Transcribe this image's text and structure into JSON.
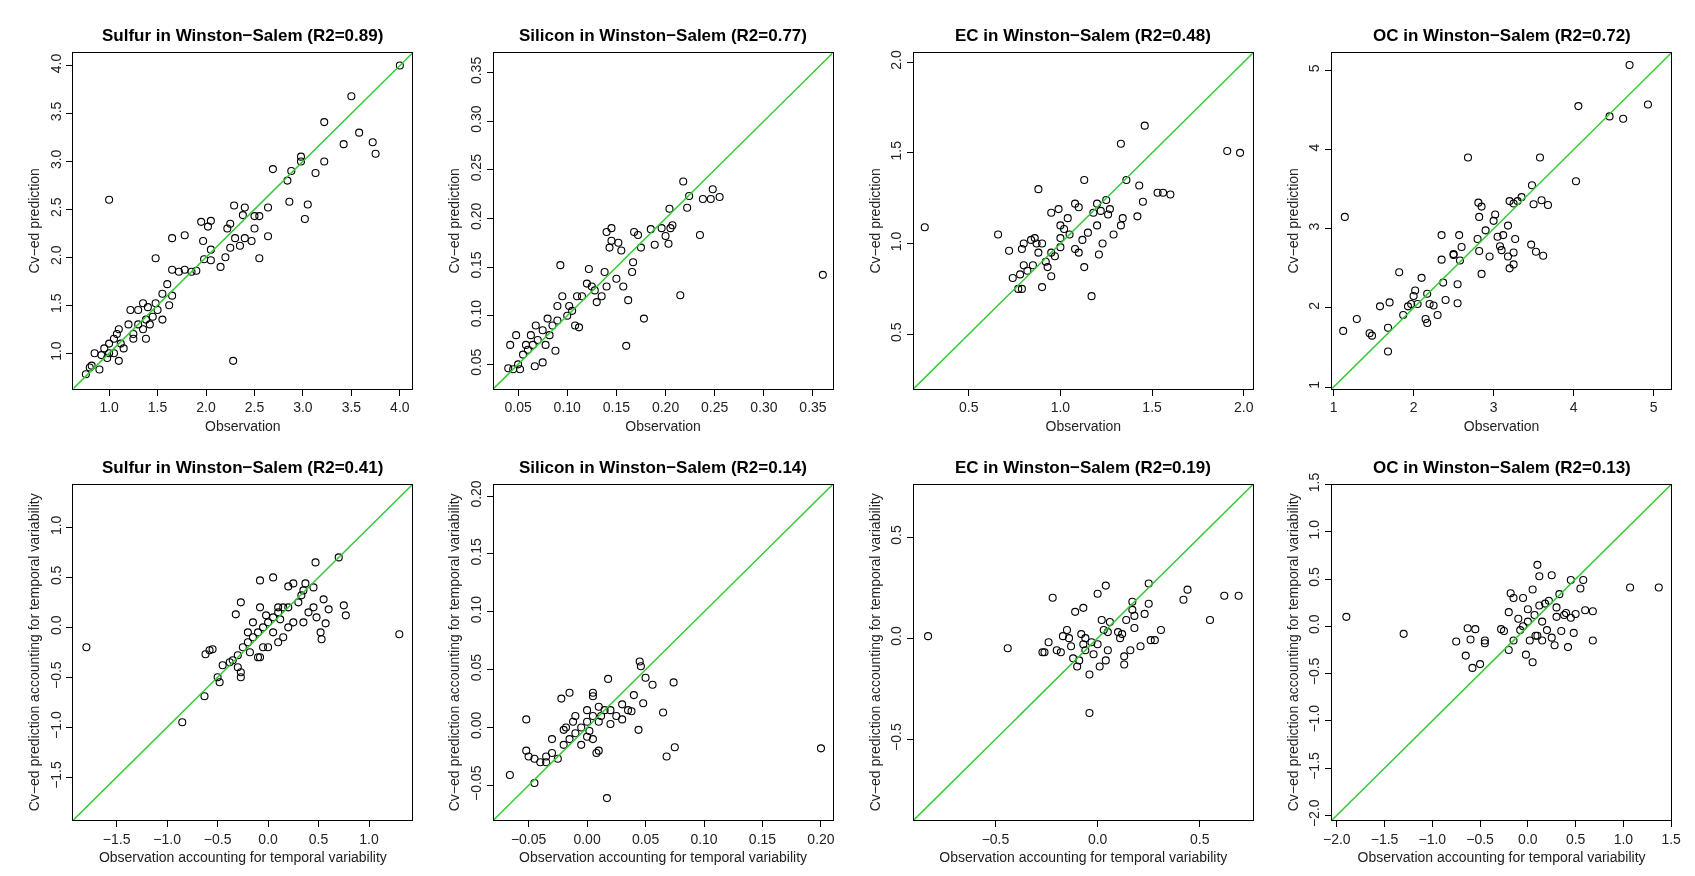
{
  "chart_data": [
    {
      "type": "scatter",
      "title": "Sulfur in Winston−Salem (R2=0.89)",
      "xlabel": "Observation",
      "ylabel": "Cv−ed prediction",
      "marker": "circle",
      "grid": false,
      "xlim": [
        0.63,
        4.13
      ],
      "ylim": [
        0.63,
        4.13
      ],
      "xticks": [
        {
          "value": 1,
          "label": "1.0"
        },
        {
          "value": 1.5,
          "label": "1.5"
        },
        {
          "value": 2,
          "label": "2.0"
        },
        {
          "value": 2.5,
          "label": "2.5"
        },
        {
          "value": 3,
          "label": "3.0"
        },
        {
          "value": 3.5,
          "label": "3.5"
        },
        {
          "value": 4,
          "label": "4.0"
        }
      ],
      "yticks": [
        {
          "value": 1,
          "label": "1.0"
        },
        {
          "value": 1.5,
          "label": "1.5"
        },
        {
          "value": 2,
          "label": "2.0"
        },
        {
          "value": 2.5,
          "label": "2.5"
        },
        {
          "value": 3,
          "label": "3.0"
        },
        {
          "value": 3.5,
          "label": "3.5"
        },
        {
          "value": 4,
          "label": "4.0"
        }
      ],
      "series": [
        {
          "color": "#000000",
          "x": [
            1.0,
            2.28,
            4.0,
            3.5,
            3.58,
            3.72,
            3.75,
            3.42,
            3.22,
            3.22,
            3.13,
            3.05,
            3.02,
            2.98,
            2.98,
            2.88,
            2.86,
            2.84,
            2.69,
            2.64,
            2.64,
            2.55,
            2.5,
            2.5,
            2.47,
            2.55,
            2.4,
            2.38,
            2.29,
            2.25,
            2.22,
            2.25,
            2.2,
            2.3,
            2.35,
            2.4,
            2.15,
            2.05,
            2.02,
            1.95,
            1.97,
            2.05,
            2.05,
            1.98,
            1.9,
            1.85,
            1.78,
            1.65,
            1.48,
            1.78,
            1.72,
            1.65,
            1.65,
            1.62,
            1.6,
            1.55,
            1.5,
            1.48,
            1.45,
            1.4,
            1.35,
            1.3,
            1.38,
            1.35,
            1.3,
            1.25,
            1.22,
            1.2,
            1.15,
            1.1,
            1.08,
            1.05,
            1.1,
            1.05,
            1.0,
            0.98,
            0.95,
            0.92,
            0.9,
            0.85,
            0.82,
            0.8,
            0.76,
            1.25,
            1.38,
            1.55,
            1.42,
            1.0,
            1.12
          ],
          "values": [
            2.6,
            0.92,
            4.0,
            3.68,
            3.3,
            3.2,
            3.08,
            3.18,
            3.41,
            3.0,
            2.88,
            2.55,
            2.4,
            3.05,
            3.0,
            2.9,
            2.58,
            2.8,
            2.92,
            2.52,
            2.22,
            2.43,
            2.43,
            2.3,
            2.17,
            1.99,
            2.52,
            2.44,
            2.54,
            2.35,
            2.3,
            2.1,
            2.0,
            2.2,
            2.12,
            2.2,
            1.9,
            2.38,
            2.32,
            2.37,
            2.17,
            2.08,
            1.97,
            1.98,
            1.86,
            1.85,
            2.23,
            2.2,
            1.99,
            1.87,
            1.85,
            1.87,
            1.6,
            1.5,
            1.72,
            1.62,
            1.45,
            1.52,
            1.38,
            1.48,
            1.52,
            1.45,
            1.35,
            1.25,
            1.3,
            1.2,
            1.45,
            1.3,
            1.05,
            1.25,
            1.2,
            1.15,
            0.92,
            1.0,
            1.1,
            0.95,
            1.05,
            0.98,
            0.83,
            1.0,
            0.87,
            0.85,
            0.78,
            1.15,
            1.15,
            1.35,
            1.3,
            1.0,
            1.1
          ]
        },
        {
          "type": "line",
          "marker": "none",
          "color": "#33cc33",
          "x": [
            0.63,
            4.13
          ],
          "values": [
            0.63,
            4.13
          ]
        }
      ]
    },
    {
      "type": "scatter",
      "title": "Silicon in Winston−Salem (R2=0.77)",
      "xlabel": "Observation",
      "ylabel": "Cv−ed prediction",
      "marker": "circle",
      "grid": false,
      "xlim": [
        0.025,
        0.37
      ],
      "ylim": [
        0.025,
        0.37
      ],
      "xticks": [
        {
          "value": 0.05,
          "label": "0.05"
        },
        {
          "value": 0.1,
          "label": "0.10"
        },
        {
          "value": 0.15,
          "label": "0.15"
        },
        {
          "value": 0.2,
          "label": "0.20"
        },
        {
          "value": 0.25,
          "label": "0.25"
        },
        {
          "value": 0.3,
          "label": "0.30"
        },
        {
          "value": 0.35,
          "label": "0.35"
        }
      ],
      "yticks": [
        {
          "value": 0.05,
          "label": "0.05"
        },
        {
          "value": 0.1,
          "label": "0.10"
        },
        {
          "value": 0.15,
          "label": "0.15"
        },
        {
          "value": 0.2,
          "label": "0.20"
        },
        {
          "value": 0.25,
          "label": "0.25"
        },
        {
          "value": 0.3,
          "label": "0.30"
        },
        {
          "value": 0.35,
          "label": "0.35"
        }
      ],
      "series": [
        {
          "color": "#000000",
          "x": [
            0.36,
            0.16,
            0.178,
            0.215,
            0.162,
            0.093,
            0.218,
            0.224,
            0.248,
            0.255,
            0.238,
            0.246,
            0.235,
            0.222,
            0.204,
            0.207,
            0.205,
            0.2,
            0.203,
            0.196,
            0.185,
            0.189,
            0.175,
            0.172,
            0.168,
            0.167,
            0.166,
            0.157,
            0.155,
            0.152,
            0.145,
            0.14,
            0.143,
            0.145,
            0.138,
            0.15,
            0.14,
            0.135,
            0.128,
            0.122,
            0.12,
            0.115,
            0.11,
            0.108,
            0.102,
            0.1,
            0.095,
            0.09,
            0.085,
            0.082,
            0.08,
            0.075,
            0.07,
            0.068,
            0.065,
            0.063,
            0.06,
            0.058,
            0.055,
            0.05,
            0.048,
            0.045,
            0.042,
            0.04,
            0.052,
            0.067,
            0.075,
            0.088,
            0.112,
            0.13,
            0.09,
            0.078,
            0.105,
            0.125
          ],
          "values": [
            0.142,
            0.069,
            0.097,
            0.121,
            0.116,
            0.152,
            0.238,
            0.223,
            0.23,
            0.222,
            0.22,
            0.22,
            0.183,
            0.211,
            0.21,
            0.193,
            0.19,
            0.182,
            0.174,
            0.19,
            0.189,
            0.173,
            0.17,
            0.183,
            0.186,
            0.155,
            0.145,
            0.13,
            0.167,
            0.175,
            0.19,
            0.186,
            0.17,
            0.177,
            0.145,
            0.138,
            0.13,
            0.12,
            0.126,
            0.148,
            0.133,
            0.12,
            0.12,
            0.09,
            0.11,
            0.1,
            0.12,
            0.095,
            0.09,
            0.08,
            0.097,
            0.085,
            0.075,
            0.09,
            0.07,
            0.08,
            0.065,
            0.07,
            0.06,
            0.05,
            0.08,
            0.045,
            0.07,
            0.046,
            0.045,
            0.048,
            0.052,
            0.064,
            0.088,
            0.114,
            0.11,
            0.07,
            0.105,
            0.13
          ]
        },
        {
          "type": "line",
          "marker": "none",
          "color": "#33cc33",
          "x": [
            0.025,
            0.37
          ],
          "values": [
            0.025,
            0.37
          ]
        }
      ]
    },
    {
      "type": "scatter",
      "title": "EC in Winston−Salem (R2=0.48)",
      "xlabel": "Observation",
      "ylabel": "Cv−ed prediction",
      "marker": "circle",
      "grid": false,
      "xlim": [
        0.2,
        2.05
      ],
      "ylim": [
        0.2,
        2.05
      ],
      "xticks": [
        {
          "value": 0.5,
          "label": "0.5"
        },
        {
          "value": 1,
          "label": "1.0"
        },
        {
          "value": 1.5,
          "label": "1.5"
        },
        {
          "value": 2,
          "label": "2.0"
        }
      ],
      "yticks": [
        {
          "value": 0.5,
          "label": "0.5"
        },
        {
          "value": 1,
          "label": "1.0"
        },
        {
          "value": 1.5,
          "label": "1.5"
        },
        {
          "value": 2,
          "label": "2.0"
        }
      ],
      "series": [
        {
          "color": "#000000",
          "x": [
            0.26,
            0.66,
            0.72,
            0.74,
            0.77,
            0.79,
            0.78,
            0.8,
            0.79,
            0.8,
            0.82,
            0.84,
            0.85,
            0.86,
            0.88,
            0.87,
            0.88,
            0.9,
            0.9,
            0.92,
            0.93,
            0.95,
            0.95,
            0.97,
            0.99,
            1.0,
            1.0,
            1.02,
            1.04,
            1.05,
            1.08,
            1.1,
            1.08,
            1.1,
            1.12,
            1.13,
            1.13,
            1.15,
            1.17,
            1.18,
            1.2,
            1.21,
            1.22,
            1.23,
            1.25,
            1.26,
            1.27,
            1.29,
            1.33,
            1.33,
            1.34,
            1.36,
            1.42,
            1.43,
            1.45,
            1.46,
            1.53,
            1.56,
            1.6,
            1.91,
            1.98,
            1.0,
            0.95,
            1.2
          ],
          "values": [
            1.09,
            1.05,
            0.96,
            0.81,
            0.75,
            0.75,
            0.83,
            0.88,
            0.97,
            1.0,
            0.85,
            1.02,
            0.88,
            1.03,
            1.3,
            1.0,
            0.95,
            0.76,
            1.0,
            0.9,
            0.87,
            1.17,
            0.82,
            0.93,
            1.19,
            1.1,
            1.03,
            1.08,
            1.14,
            1.05,
            1.22,
            1.2,
            0.97,
            0.95,
            1.02,
            1.35,
            0.87,
            1.06,
            0.71,
            1.17,
            1.22,
            0.94,
            1.18,
            1.0,
            1.24,
            1.16,
            1.19,
            1.05,
            1.55,
            1.1,
            1.14,
            1.35,
            1.15,
            1.32,
            1.23,
            1.65,
            1.28,
            1.28,
            1.27,
            1.51,
            1.5,
            0.98,
            0.95,
            1.1
          ]
        },
        {
          "type": "line",
          "marker": "none",
          "color": "#33cc33",
          "x": [
            0.2,
            2.05
          ],
          "values": [
            0.2,
            2.05
          ]
        }
      ]
    },
    {
      "type": "scatter",
      "title": "OC in Winston−Salem (R2=0.72)",
      "xlabel": "Observation",
      "ylabel": "Cv−ed prediction",
      "marker": "circle",
      "grid": false,
      "xlim": [
        0.98,
        5.22
      ],
      "ylim": [
        0.98,
        5.22
      ],
      "xticks": [
        1,
        2,
        3,
        4,
        5
      ],
      "yticks": [
        1,
        2,
        3,
        4,
        5
      ],
      "series": [
        {
          "color": "#000000",
          "x": [
            1.14,
            1.12,
            1.29,
            1.45,
            1.48,
            1.58,
            1.68,
            1.68,
            1.7,
            1.82,
            1.87,
            1.93,
            1.97,
            2.0,
            2.02,
            2.05,
            2.1,
            2.15,
            2.17,
            2.17,
            2.2,
            2.25,
            2.3,
            2.35,
            2.35,
            2.37,
            2.4,
            2.5,
            2.55,
            2.55,
            2.57,
            2.58,
            2.6,
            2.68,
            2.8,
            2.81,
            2.82,
            2.82,
            2.85,
            2.85,
            2.9,
            2.95,
            3.0,
            3.02,
            3.05,
            3.08,
            3.1,
            3.12,
            3.18,
            3.18,
            3.2,
            3.2,
            3.25,
            3.27,
            3.25,
            3.3,
            3.35,
            3.47,
            3.48,
            3.5,
            3.53,
            3.58,
            3.6,
            3.62,
            3.68,
            4.03,
            4.06,
            4.45,
            4.62,
            4.7,
            4.93,
            2.5,
            3.25
          ],
          "values": [
            3.15,
            1.71,
            1.86,
            1.68,
            1.65,
            2.02,
            1.45,
            1.75,
            2.07,
            2.45,
            1.91,
            2.02,
            2.05,
            2.15,
            2.22,
            2.05,
            2.38,
            1.86,
            1.81,
            2.18,
            2.05,
            2.03,
            1.91,
            2.61,
            2.92,
            2.32,
            2.1,
            2.68,
            2.06,
            2.3,
            2.92,
            2.6,
            2.77,
            3.9,
            2.87,
            3.33,
            2.72,
            3.15,
            3.28,
            2.43,
            2.98,
            2.65,
            3.1,
            3.18,
            2.9,
            2.78,
            2.73,
            2.92,
            2.65,
            3.04,
            2.5,
            3.35,
            2.55,
            2.87,
            3.32,
            3.35,
            3.4,
            2.8,
            3.55,
            3.31,
            2.71,
            3.9,
            3.36,
            2.66,
            3.3,
            3.6,
            4.55,
            4.42,
            4.39,
            5.07,
            4.57,
            2.67,
            2.7
          ]
        },
        {
          "type": "line",
          "marker": "none",
          "color": "#33cc33",
          "x": [
            0.98,
            5.22
          ],
          "values": [
            0.98,
            5.22
          ]
        }
      ]
    },
    {
      "type": "scatter",
      "title": "Sulfur in Winston−Salem (R2=0.41)",
      "xlabel": "Observation accounting for temporal variability",
      "ylabel": "Cv−ed prediction accounting for temporal variability",
      "marker": "circle",
      "grid": false,
      "xlim": [
        -1.93,
        1.43
      ],
      "ylim": [
        -1.93,
        1.43
      ],
      "xticks": [
        {
          "value": -1.5,
          "label": "−1.5"
        },
        {
          "value": -1,
          "label": "−1.0"
        },
        {
          "value": -0.5,
          "label": "−0.5"
        },
        {
          "value": 0,
          "label": "0.0"
        },
        {
          "value": 0.5,
          "label": "0.5"
        },
        {
          "value": 1,
          "label": "1.0"
        }
      ],
      "yticks": [
        {
          "value": -1.5,
          "label": "−1.5"
        },
        {
          "value": -1,
          "label": "−1.0"
        },
        {
          "value": -0.5,
          "label": "−0.5"
        },
        {
          "value": 0,
          "label": "0.0"
        },
        {
          "value": 0.5,
          "label": "0.5"
        },
        {
          "value": 1,
          "label": "1.0"
        }
      ],
      "series": [
        {
          "color": "#000000",
          "x": [
            -1.8,
            1.3,
            -0.85,
            -0.63,
            0.7,
            0.47,
            0.05,
            -0.08,
            0.2,
            0.25,
            0.37,
            0.45,
            0.35,
            0.33,
            0.3,
            0.2,
            0.15,
            0.1,
            0.05,
            0.0,
            -0.05,
            -0.1,
            -0.15,
            -0.2,
            -0.25,
            -0.3,
            -0.35,
            -0.45,
            -0.5,
            -0.48,
            -0.27,
            -0.27,
            -0.3,
            -0.38,
            -0.55,
            -0.58,
            -0.62,
            -0.32,
            -0.27,
            -0.15,
            -0.08,
            -0.05,
            -0.1,
            0.0,
            0.1,
            0.15,
            0.2,
            0.25,
            0.35,
            0.4,
            0.45,
            0.48,
            0.52,
            0.53,
            0.55,
            0.57,
            0.6,
            0.75,
            0.77,
            0.1,
            -0.2,
            -0.02,
            0.05,
            -0.18,
            -0.08,
            0.12
          ],
          "values": [
            -0.2,
            -0.07,
            -0.95,
            -0.69,
            0.7,
            0.65,
            0.5,
            0.47,
            0.41,
            0.44,
            0.44,
            0.4,
            0.37,
            0.32,
            0.25,
            0.2,
            0.2,
            0.15,
            0.1,
            0.05,
            0.0,
            -0.05,
            -0.1,
            -0.15,
            -0.2,
            -0.28,
            -0.33,
            -0.38,
            -0.5,
            -0.55,
            -0.5,
            -0.45,
            -0.4,
            -0.35,
            -0.22,
            -0.23,
            -0.27,
            0.13,
            0.25,
            0.05,
            0.2,
            -0.2,
            -0.3,
            -0.2,
            -0.15,
            -0.1,
            0.0,
            0.05,
            0.05,
            0.15,
            0.2,
            0.1,
            -0.05,
            -0.12,
            0.28,
            0.04,
            0.18,
            0.22,
            0.12,
            0.2,
            -0.05,
            0.12,
            -0.05,
            -0.25,
            -0.3,
            0.08
          ]
        },
        {
          "type": "line",
          "marker": "none",
          "color": "#33cc33",
          "x": [
            -1.93,
            1.43
          ],
          "values": [
            -1.93,
            1.43
          ]
        }
      ]
    },
    {
      "type": "scatter",
      "title": "Silicon in Winston−Salem (R2=0.14)",
      "xlabel": "Observation accounting for temporal variability",
      "ylabel": "Cv−ed prediction accounting for temporal variability",
      "marker": "circle",
      "grid": false,
      "xlim": [
        -0.08,
        0.21
      ],
      "ylim": [
        -0.08,
        0.21
      ],
      "xticks": [
        {
          "value": -0.05,
          "label": "−0.05"
        },
        {
          "value": 0,
          "label": "0.00"
        },
        {
          "value": 0.05,
          "label": "0.05"
        },
        {
          "value": 0.1,
          "label": "0.10"
        },
        {
          "value": 0.15,
          "label": "0.15"
        },
        {
          "value": 0.2,
          "label": "0.20"
        }
      ],
      "yticks": [
        {
          "value": -0.05,
          "label": "−0.05"
        },
        {
          "value": 0,
          "label": "0.00"
        },
        {
          "value": 0.05,
          "label": "0.05"
        },
        {
          "value": 0.1,
          "label": "0.10"
        },
        {
          "value": 0.15,
          "label": "0.15"
        },
        {
          "value": 0.2,
          "label": "0.20"
        }
      ],
      "series": [
        {
          "color": "#000000",
          "x": [
            0.2,
            -0.066,
            -0.045,
            0.017,
            -0.052,
            -0.052,
            -0.05,
            -0.045,
            -0.04,
            -0.035,
            -0.035,
            -0.03,
            -0.025,
            -0.022,
            -0.015,
            -0.02,
            -0.015,
            -0.01,
            -0.005,
            0.0,
            0.005,
            0.005,
            0.0,
            -0.01,
            0.005,
            0.005,
            0.01,
            0.01,
            0.008,
            0.015,
            0.018,
            0.02,
            0.025,
            0.03,
            0.03,
            0.035,
            0.038,
            0.04,
            0.044,
            0.045,
            0.046,
            0.048,
            0.05,
            0.056,
            0.065,
            0.068,
            0.074,
            0.075,
            -0.02,
            -0.03,
            0.0,
            -0.005,
            0.012,
            -0.012,
            0.002,
            0.02,
            -0.018,
            0.01
          ],
          "values": [
            -0.018,
            -0.041,
            -0.048,
            -0.061,
            0.007,
            -0.02,
            -0.025,
            -0.027,
            -0.03,
            -0.025,
            -0.03,
            -0.022,
            -0.027,
            0.025,
            0.03,
            -0.015,
            -0.01,
            -0.005,
            0.0,
            0.005,
            0.01,
            -0.01,
            -0.008,
            0.01,
            0.03,
            0.027,
            0.005,
            -0.02,
            -0.022,
            0.015,
            0.042,
            0.003,
            0.01,
            0.02,
            0.007,
            0.015,
            0.014,
            0.028,
            -0.002,
            0.057,
            0.053,
            0.021,
            0.043,
            0.037,
            0.013,
            -0.025,
            0.039,
            -0.017,
            -0.002,
            -0.01,
            0.015,
            -0.015,
            0.01,
            0.005,
            -0.003,
            0.015,
            0.0,
            0.018
          ]
        },
        {
          "type": "line",
          "marker": "none",
          "color": "#33cc33",
          "x": [
            -0.08,
            0.21
          ],
          "values": [
            -0.08,
            0.21
          ]
        }
      ]
    },
    {
      "type": "scatter",
      "title": "EC in Winston−Salem (R2=0.19)",
      "xlabel": "Observation accounting for temporal variability",
      "ylabel": "Cv−ed prediction accounting for temporal variability",
      "marker": "circle",
      "grid": false,
      "xlim": [
        -0.9,
        0.76
      ],
      "ylim": [
        -0.9,
        0.76
      ],
      "xticks": [
        {
          "value": -0.5,
          "label": "−0.5"
        },
        {
          "value": 0,
          "label": "0.0"
        },
        {
          "value": 0.5,
          "label": "0.5"
        }
      ],
      "yticks": [
        {
          "value": -0.5,
          "label": "−0.5"
        },
        {
          "value": 0,
          "label": "0.0"
        },
        {
          "value": 0.5,
          "label": "0.5"
        }
      ],
      "series": [
        {
          "color": "#000000",
          "x": [
            -0.83,
            -0.44,
            -0.27,
            -0.26,
            -0.24,
            -0.22,
            -0.2,
            -0.18,
            -0.17,
            -0.15,
            -0.14,
            -0.13,
            -0.12,
            -0.11,
            -0.1,
            -0.09,
            -0.08,
            -0.07,
            -0.07,
            -0.06,
            -0.04,
            -0.04,
            -0.03,
            -0.02,
            0.0,
            0.01,
            0.02,
            0.03,
            0.04,
            0.04,
            0.05,
            0.05,
            0.06,
            0.1,
            0.11,
            0.12,
            0.13,
            0.13,
            0.14,
            0.16,
            0.17,
            0.17,
            0.18,
            0.18,
            0.21,
            0.23,
            0.25,
            0.25,
            0.26,
            0.28,
            0.31,
            0.42,
            0.44,
            0.55,
            0.62,
            0.69,
            -0.06,
            0.0
          ],
          "values": [
            0.01,
            -0.05,
            -0.07,
            -0.07,
            -0.02,
            0.2,
            -0.06,
            -0.07,
            0.01,
            0.04,
            0.0,
            -0.04,
            -0.1,
            0.13,
            -0.14,
            -0.11,
            0.02,
            -0.03,
            0.15,
            -0.06,
            -0.18,
            -0.37,
            -0.02,
            -0.08,
            0.22,
            -0.14,
            0.09,
            0.04,
            -0.11,
            0.26,
            0.03,
            -0.06,
            0.08,
            0.03,
            0.0,
            0.02,
            -0.09,
            -0.13,
            0.09,
            -0.06,
            0.18,
            0.14,
            0.05,
            0.11,
            -0.04,
            0.12,
            0.27,
            0.17,
            -0.01,
            -0.01,
            0.04,
            0.19,
            0.24,
            0.09,
            0.21,
            0.21,
            0.0,
            -0.03
          ]
        },
        {
          "type": "line",
          "marker": "none",
          "color": "#33cc33",
          "x": [
            -0.9,
            0.76
          ],
          "values": [
            -0.9,
            0.76
          ]
        }
      ]
    },
    {
      "type": "scatter",
      "title": "OC in Winston−Salem (R2=0.13)",
      "xlabel": "Observation accounting for temporal variability",
      "ylabel": "Cv−ed prediction accounting for temporal variability",
      "marker": "circle",
      "grid": false,
      "xlim": [
        -2.05,
        1.5
      ],
      "ylim": [
        -2.05,
        1.5
      ],
      "xticks": [
        {
          "value": -2,
          "label": "−2.0"
        },
        {
          "value": -1.5,
          "label": "−1.5"
        },
        {
          "value": -1,
          "label": "−1.0"
        },
        {
          "value": -0.5,
          "label": "−0.5"
        },
        {
          "value": 0,
          "label": "0.0"
        },
        {
          "value": 0.5,
          "label": "0.5"
        },
        {
          "value": 1,
          "label": "1.0"
        },
        {
          "value": 1.5,
          "label": "1.5"
        }
      ],
      "yticks": [
        {
          "value": -2,
          "label": "−2.0"
        },
        {
          "value": -1.5,
          "label": "−1.5"
        },
        {
          "value": -1,
          "label": "−1.0"
        },
        {
          "value": -0.5,
          "label": "−0.5"
        },
        {
          "value": 0,
          "label": "0.0"
        },
        {
          "value": 0.5,
          "label": "0.5"
        },
        {
          "value": 1,
          "label": "1.0"
        },
        {
          "value": 1.5,
          "label": "1.5"
        }
      ],
      "series": [
        {
          "color": "#000000",
          "x": [
            -1.9,
            -1.3,
            -0.75,
            -0.65,
            -0.63,
            -0.6,
            -0.58,
            -0.55,
            -0.45,
            -0.45,
            -0.5,
            -0.28,
            -0.25,
            -0.2,
            -0.2,
            -0.18,
            -0.15,
            -0.15,
            -0.1,
            -0.08,
            -0.05,
            -0.02,
            0.0,
            0.0,
            0.02,
            0.05,
            0.07,
            0.08,
            0.1,
            0.1,
            0.12,
            0.12,
            0.15,
            0.15,
            0.18,
            0.2,
            0.22,
            0.25,
            0.25,
            0.28,
            0.3,
            0.33,
            0.35,
            0.38,
            0.4,
            0.42,
            0.45,
            0.45,
            0.48,
            0.5,
            0.55,
            0.58,
            0.6,
            0.68,
            0.68,
            1.07,
            1.37,
            0.05,
            -0.05,
            0.3
          ],
          "values": [
            0.1,
            -0.08,
            -0.16,
            -0.31,
            -0.02,
            -0.14,
            -0.44,
            -0.03,
            -0.15,
            -0.18,
            -0.4,
            -0.03,
            -0.05,
            -0.25,
            0.15,
            0.35,
            0.3,
            -0.15,
            0.08,
            -0.04,
            0.3,
            -0.3,
            0.18,
            0.05,
            -0.15,
            0.39,
            0.12,
            -0.1,
            0.65,
            -0.1,
            0.53,
            0.22,
            0.05,
            -0.15,
            0.24,
            -0.04,
            0.27,
            0.54,
            -0.12,
            -0.2,
            0.1,
            0.34,
            -0.05,
            0.12,
            0.14,
            -0.22,
            0.49,
            0.09,
            -0.07,
            0.13,
            0.4,
            0.49,
            0.17,
            0.16,
            -0.15,
            0.41,
            0.41,
            -0.38,
            0.0,
            0.2
          ]
        },
        {
          "type": "line",
          "marker": "none",
          "color": "#33cc33",
          "x": [
            -2.05,
            1.5
          ],
          "values": [
            -2.05,
            1.5
          ]
        }
      ]
    }
  ]
}
